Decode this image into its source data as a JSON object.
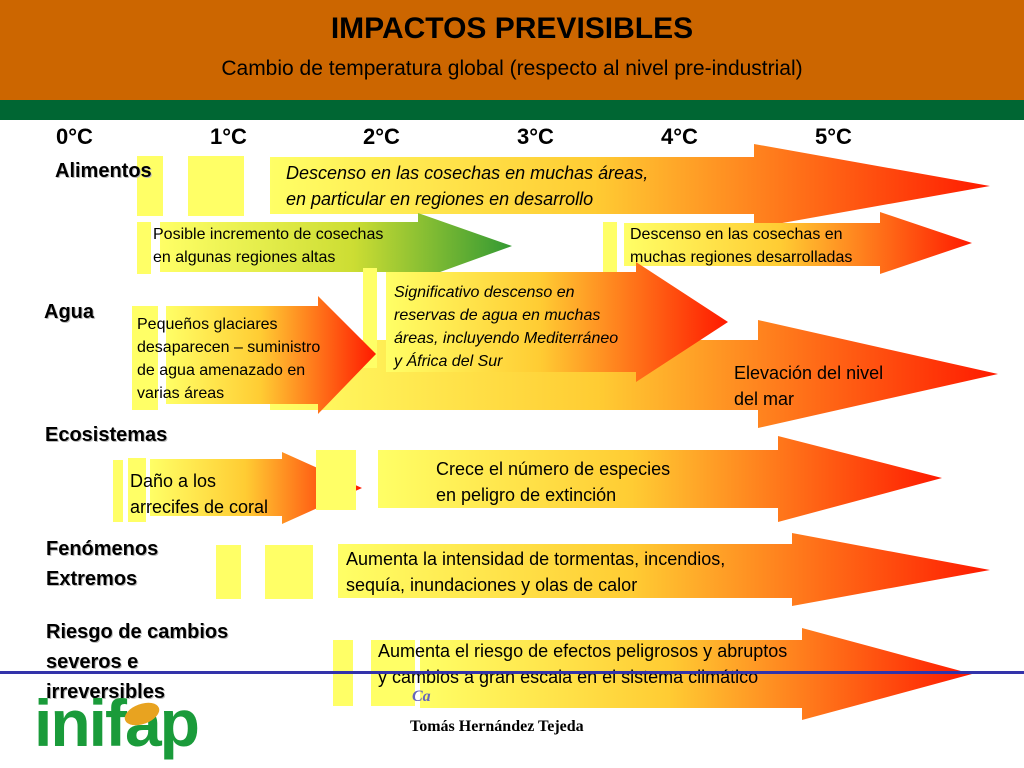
{
  "header": {
    "title": "IMPACTOS PREVISIBLES",
    "subtitle": "Cambio de temperatura global (respecto al nivel pre-industrial)"
  },
  "temperatures": [
    "0°C",
    "1°C",
    "2°C",
    "3°C",
    "4°C",
    "5°C"
  ],
  "categories": {
    "food": "Alimentos",
    "water": "Agua",
    "ecosystems": "Ecosistemas",
    "extreme_line1": "Fenómenos",
    "extreme_line2": "Extremos",
    "risk_line1": "Riesgo de cambios",
    "risk_line2": "severos e",
    "risk_line3": "irreversibles"
  },
  "impacts": {
    "crop_decline_dev_1": "Descenso en las cosechas en muchas áreas,",
    "crop_decline_dev_2": "en particular en regiones en desarrollo",
    "crop_increase_1": "Posible incremento de cosechas",
    "crop_increase_2": "en algunas regiones altas",
    "crop_decline_developed_1": "Descenso en las cosechas en",
    "crop_decline_developed_2": "muchas regiones desarrolladas",
    "water_reserves_1": "Significativo descenso en",
    "water_reserves_2": "reservas de agua en muchas",
    "water_reserves_3": "áreas, incluyendo Mediterráneo",
    "water_reserves_4": "y África del Sur",
    "glaciers_1": "Pequeños glaciares",
    "glaciers_2": "desaparecen – suministro",
    "glaciers_3": "de agua amenazado en",
    "glaciers_4": "varias áreas",
    "sea_level_1": "Elevación del nivel",
    "sea_level_2": "del mar",
    "coral_1": "Daño a los",
    "coral_2": "arrecifes de coral",
    "species_1": "Crece el número de especies",
    "species_2": "en peligro de extinción",
    "storms_1": "Aumenta la intensidad de tormentas, incendios,",
    "storms_2": "sequía, inundaciones y olas de calor",
    "abrupt_1": "Aumenta el riesgo de efectos peligrosos y abruptos",
    "abrupt_2": "y cambios a gran escala en el sistema climático"
  },
  "footer": {
    "logo": "inifap",
    "partial": "Ca",
    "author": "Tomás Hernández Tejeda"
  },
  "colors": {
    "header": "#cc6600",
    "band": "#006633",
    "arrow_start": "#ffff66",
    "arrow_end": "#ff1a00",
    "arrow_green_end": "#33aa33",
    "logo": "#1a9b3a"
  }
}
